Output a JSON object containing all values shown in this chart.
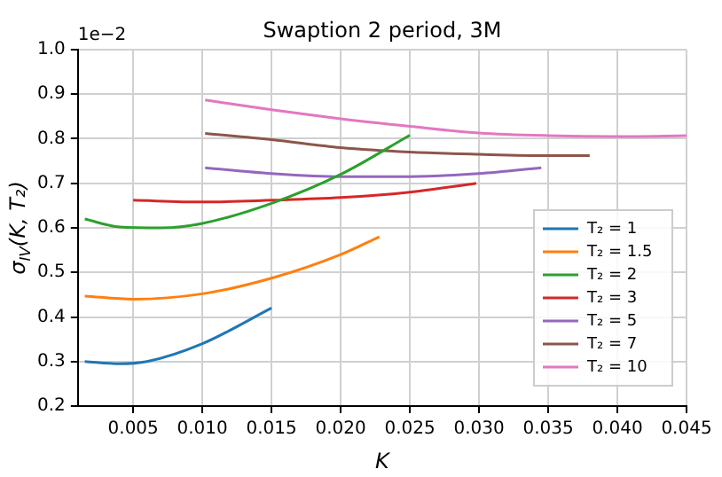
{
  "chart_data": {
    "type": "line",
    "title": "Swaption 2 period, 3M",
    "xlabel": "K",
    "ylabel": "σ$_{IV}$(K, T₂)",
    "annotations": [
      "1e−2"
    ],
    "xlim": [
      0.001,
      0.045
    ],
    "xticks": [
      {
        "value": 0.005,
        "label": "0.005"
      },
      {
        "value": 0.01,
        "label": "0.010"
      },
      {
        "value": 0.015,
        "label": "0.015"
      },
      {
        "value": 0.02,
        "label": "0.020"
      },
      {
        "value": 0.025,
        "label": "0.025"
      },
      {
        "value": 0.03,
        "label": "0.030"
      },
      {
        "value": 0.035,
        "label": "0.035"
      },
      {
        "value": 0.04,
        "label": "0.040"
      },
      {
        "value": 0.045,
        "label": "0.045"
      }
    ],
    "ylim": [
      0.2,
      1.0
    ],
    "yticks": [
      {
        "value": 0.2,
        "label": "0.2"
      },
      {
        "value": 0.3,
        "label": "0.3"
      },
      {
        "value": 0.4,
        "label": "0.4"
      },
      {
        "value": 0.5,
        "label": "0.5"
      },
      {
        "value": 0.6,
        "label": "0.6"
      },
      {
        "value": 0.7,
        "label": "0.7"
      },
      {
        "value": 0.8,
        "label": "0.8"
      },
      {
        "value": 0.9,
        "label": "0.9"
      },
      {
        "value": 1.0,
        "label": "1.0"
      }
    ],
    "grid": true,
    "legend": "right",
    "marker": "none",
    "line_style": "solid",
    "series": [
      {
        "name": "T₂ = 1",
        "color": "#1f77b4",
        "x": [
          0.0015,
          0.004,
          0.006,
          0.01,
          0.015
        ],
        "values": [
          0.3,
          0.295,
          0.3,
          0.34,
          0.42
        ]
      },
      {
        "name": "T₂ = 1.5",
        "color": "#ff7f0e",
        "x": [
          0.0015,
          0.005,
          0.01,
          0.015,
          0.02,
          0.0228
        ],
        "values": [
          0.447,
          0.44,
          0.452,
          0.487,
          0.54,
          0.58
        ]
      },
      {
        "name": "T₂ = 2",
        "color": "#2ca02c",
        "x": [
          0.0015,
          0.004,
          0.007,
          0.01,
          0.015,
          0.02,
          0.025
        ],
        "values": [
          0.62,
          0.602,
          0.6,
          0.61,
          0.655,
          0.72,
          0.808
        ]
      },
      {
        "name": "T₂ = 3",
        "color": "#d62728",
        "x": [
          0.005,
          0.01,
          0.015,
          0.02,
          0.025,
          0.0298
        ],
        "values": [
          0.662,
          0.658,
          0.662,
          0.668,
          0.68,
          0.7
        ]
      },
      {
        "name": "T₂ = 5",
        "color": "#9467bd",
        "x": [
          0.0102,
          0.015,
          0.02,
          0.025,
          0.03,
          0.0345
        ],
        "values": [
          0.735,
          0.722,
          0.715,
          0.715,
          0.722,
          0.735
        ]
      },
      {
        "name": "T₂ = 7",
        "color": "#8c564b",
        "x": [
          0.0102,
          0.015,
          0.02,
          0.025,
          0.03,
          0.035,
          0.038
        ],
        "values": [
          0.812,
          0.798,
          0.78,
          0.77,
          0.765,
          0.762,
          0.762
        ]
      },
      {
        "name": "T₂ = 10",
        "color": "#e377c2",
        "x": [
          0.0102,
          0.015,
          0.02,
          0.025,
          0.03,
          0.035,
          0.04,
          0.045
        ],
        "values": [
          0.887,
          0.865,
          0.845,
          0.828,
          0.813,
          0.807,
          0.805,
          0.807
        ]
      }
    ]
  }
}
